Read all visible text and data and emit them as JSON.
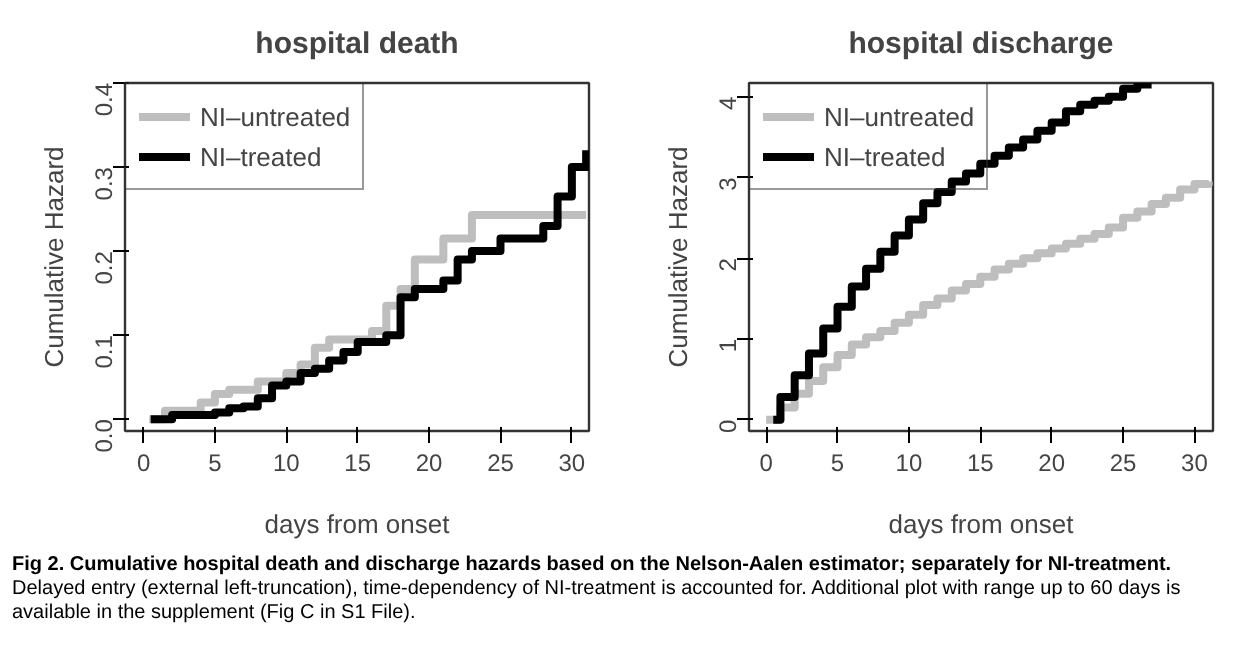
{
  "chart_data": [
    {
      "type": "step",
      "title": "hospital death",
      "xlabel": "days from onset",
      "ylabel": "Cumulative Hazard",
      "xlim": [
        -1.3,
        31.2
      ],
      "ylim": [
        -0.014,
        0.4
      ],
      "xticks": [
        0,
        5,
        10,
        15,
        20,
        25,
        30
      ],
      "yticks": [
        {
          "value": 0,
          "label": "0.0"
        },
        {
          "value": 0.1,
          "label": "0.1"
        },
        {
          "value": 0.2,
          "label": "0.2"
        },
        {
          "value": 0.3,
          "label": "0.3"
        },
        {
          "value": 0.4,
          "label": "0.4"
        }
      ],
      "grid": false,
      "legend": "top left",
      "line_style": "solid",
      "marker": "none",
      "series": [
        {
          "name": "NI–untreated",
          "color": "#bebebe",
          "x": [
            0.4,
            1.5,
            4,
            5,
            6,
            8,
            10,
            11,
            12,
            13,
            16,
            17,
            18,
            19,
            21,
            23,
            31
          ],
          "values": [
            0,
            0.01,
            0.02,
            0.03,
            0.035,
            0.045,
            0.055,
            0.065,
            0.085,
            0.095,
            0.105,
            0.135,
            0.155,
            0.19,
            0.215,
            0.243,
            0.243
          ]
        },
        {
          "name": "NI–treated",
          "color": "#000000",
          "x": [
            0.5,
            2,
            5,
            6,
            7,
            8,
            9,
            10,
            11,
            12,
            13,
            14,
            15,
            17,
            18,
            19,
            21,
            22,
            23,
            25,
            28,
            29,
            30,
            31
          ],
          "values": [
            0,
            0.005,
            0.008,
            0.013,
            0.015,
            0.025,
            0.04,
            0.045,
            0.055,
            0.06,
            0.07,
            0.08,
            0.092,
            0.1,
            0.145,
            0.155,
            0.165,
            0.19,
            0.2,
            0.215,
            0.23,
            0.265,
            0.3,
            0.32
          ]
        }
      ],
      "annotations": [
        "Fig 2. Cumulative hospital death and discharge hazards based on the Nelson-Aalen estimator; separately for NI-treatment.",
        "Delayed entry (external left-truncation), time-dependency of NI-treatment is accounted for. Additional plot with range up to 60 days is available in the supplement (Fig C in S1 File)."
      ]
    },
    {
      "type": "step",
      "title": "hospital discharge",
      "xlabel": "days from onset",
      "ylabel": "Cumulative Hazard",
      "xlim": [
        -1.2,
        31.3
      ],
      "ylim": [
        -0.14,
        4.17
      ],
      "xticks": [
        0,
        5,
        10,
        15,
        20,
        25,
        30
      ],
      "yticks": [
        0,
        1,
        2,
        3,
        4
      ],
      "grid": false,
      "legend": "top left",
      "line_style": "solid",
      "marker": "none",
      "series": [
        {
          "name": "NI–untreated",
          "color": "#bebebe",
          "x": [
            0,
            1,
            2,
            3,
            4,
            5,
            6,
            7,
            8,
            9,
            10,
            11,
            12,
            13,
            14,
            15,
            16,
            17,
            18,
            19,
            20,
            21,
            22,
            23,
            24,
            25,
            26,
            27,
            28,
            29,
            30,
            31
          ],
          "values": [
            0,
            0.15,
            0.32,
            0.48,
            0.65,
            0.8,
            0.93,
            1.02,
            1.1,
            1.2,
            1.3,
            1.42,
            1.5,
            1.6,
            1.68,
            1.77,
            1.86,
            1.93,
            2.0,
            2.06,
            2.12,
            2.18,
            2.24,
            2.3,
            2.38,
            2.5,
            2.58,
            2.67,
            2.75,
            2.85,
            2.92,
            2.95
          ]
        },
        {
          "name": "NI–treated",
          "color": "#000000",
          "x": [
            0.5,
            1,
            2,
            3,
            4,
            5,
            6,
            7,
            8,
            9,
            10,
            11,
            12,
            13,
            14,
            15,
            16,
            17,
            18,
            19,
            20,
            21,
            22,
            23,
            24,
            25,
            26,
            27
          ],
          "values": [
            0,
            0.28,
            0.55,
            0.82,
            1.13,
            1.4,
            1.65,
            1.87,
            2.08,
            2.28,
            2.48,
            2.68,
            2.82,
            2.95,
            3.05,
            3.17,
            3.27,
            3.37,
            3.47,
            3.58,
            3.68,
            3.82,
            3.9,
            3.95,
            4.0,
            4.1,
            4.15,
            4.15
          ]
        }
      ]
    }
  ]
}
